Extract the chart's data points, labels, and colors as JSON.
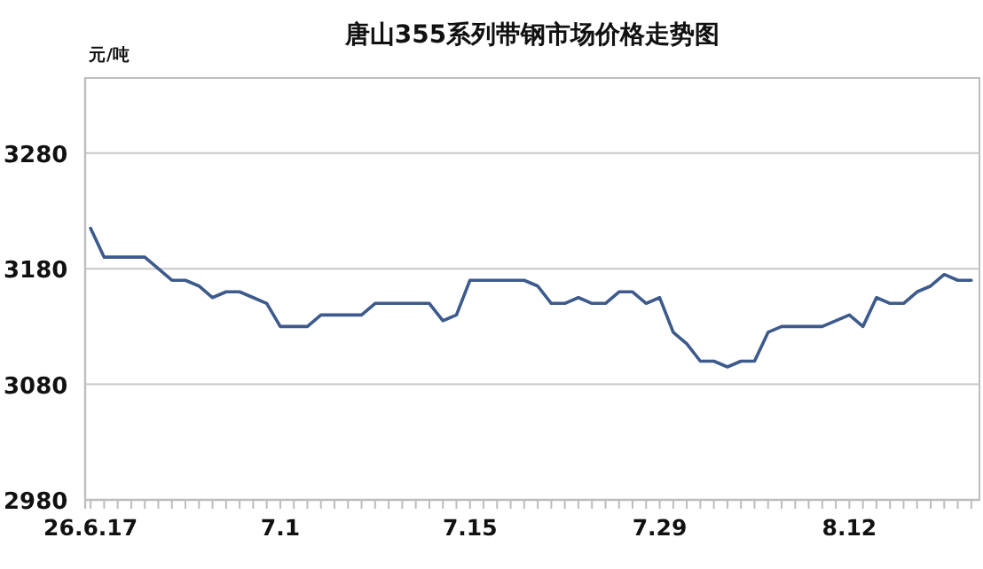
{
  "chart_data": {
    "type": "line",
    "title": "唐山355系列带钢市场价格走势图",
    "ylabel": "元/吨",
    "categories": [
      "26.6.17",
      null,
      null,
      null,
      null,
      null,
      null,
      null,
      null,
      null,
      null,
      null,
      null,
      null,
      "7.1",
      null,
      null,
      null,
      null,
      null,
      null,
      null,
      null,
      null,
      null,
      null,
      null,
      null,
      "7.15",
      null,
      null,
      null,
      null,
      null,
      null,
      null,
      null,
      null,
      null,
      null,
      null,
      null,
      "7.29",
      null,
      null,
      null,
      null,
      null,
      null,
      null,
      null,
      null,
      null,
      null,
      null,
      null,
      "8.12",
      null,
      null,
      null,
      null,
      null,
      null,
      null,
      null,
      null
    ],
    "series": [
      {
        "color": "#3d5a8c",
        "values": [
          3215,
          3190,
          3190,
          3190,
          3190,
          3180,
          3170,
          3170,
          3165,
          3155,
          3160,
          3160,
          3155,
          3150,
          3130,
          3130,
          3130,
          3140,
          3140,
          3140,
          3140,
          3150,
          3150,
          3150,
          3150,
          3150,
          3135,
          3140,
          3170,
          3170,
          3170,
          3170,
          3170,
          3165,
          3150,
          3150,
          3155,
          3150,
          3150,
          3160,
          3160,
          3150,
          3155,
          3125,
          3115,
          3100,
          3100,
          3095,
          3100,
          3100,
          3125,
          3130,
          3130,
          3130,
          3130,
          3135,
          3140,
          3130,
          3155,
          3150,
          3150,
          3160,
          3165,
          3175,
          3170,
          3170
        ]
      }
    ],
    "ylim": [
      2980,
      3345
    ],
    "yticks": [
      2980,
      3080,
      3180,
      3280
    ],
    "grid": "y"
  }
}
